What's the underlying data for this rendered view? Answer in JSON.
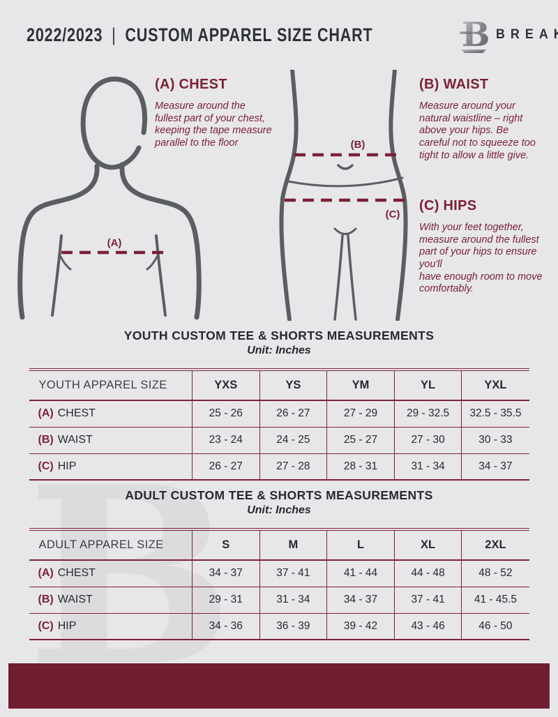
{
  "header": {
    "season": "2022/2023",
    "separator": "|",
    "title": "CUSTOM APPAREL SIZE CHART",
    "brand": "BREAKAWAY",
    "logo_icon": "breakaway-b-logo"
  },
  "colors": {
    "background": "#E7E7E9",
    "maroon_accent": "#7B2135",
    "footer_maroon": "#701D32",
    "dark_text": "#2D3136",
    "figure_gray": "#5A5E62",
    "table_rule": "#7E2137",
    "watermark_gray": "#DCDCDF"
  },
  "guide": {
    "chest": {
      "heading": "(A) CHEST",
      "marker": "(A)",
      "text": "Measure around the fullest part of your chest, keeping the tape measure parallel to the floor"
    },
    "waist": {
      "heading": "(B) WAIST",
      "marker": "(B)",
      "text": "Measure around your natural waistline – right above your hips. Be careful not to squeeze too tight to allow a little give."
    },
    "hips": {
      "heading": "(C) HIPS",
      "marker": "(C)",
      "text": "With your feet together, measure around the fullest part of your hips to ensure you'll\nhave enough room to move comfortably."
    }
  },
  "tables": {
    "youth": {
      "title": "YOUTH CUSTOM TEE & SHORTS MEASUREMENTS",
      "unit": "Unit: Inches",
      "size_header": "YOUTH APPAREL SIZE",
      "sizes": [
        "YXS",
        "YS",
        "YM",
        "YL",
        "YXL"
      ],
      "rows": [
        {
          "marker": "(A)",
          "label": "CHEST",
          "values": [
            "25 - 26",
            "26 - 27",
            "27 - 29",
            "29 - 32.5",
            "32.5 - 35.5"
          ]
        },
        {
          "marker": "(B)",
          "label": "WAIST",
          "values": [
            "23 - 24",
            "24 - 25",
            "25 - 27",
            "27 - 30",
            "30 - 33"
          ]
        },
        {
          "marker": "(C)",
          "label": "HIP",
          "values": [
            "26 - 27",
            "27 - 28",
            "28 - 31",
            "31 - 34",
            "34 - 37"
          ]
        }
      ]
    },
    "adult": {
      "title": "ADULT CUSTOM TEE & SHORTS MEASUREMENTS",
      "unit": "Unit: Inches",
      "size_header": "ADULT APPAREL SIZE",
      "sizes": [
        "S",
        "M",
        "L",
        "XL",
        "2XL"
      ],
      "rows": [
        {
          "marker": "(A)",
          "label": "CHEST",
          "values": [
            "34 - 37",
            "37 - 41",
            "41 - 44",
            "44 - 48",
            "48 - 52"
          ]
        },
        {
          "marker": "(B)",
          "label": "WAIST",
          "values": [
            "29 - 31",
            "31 - 34",
            "34 - 37",
            "37 - 41",
            "41 - 45.5"
          ]
        },
        {
          "marker": "(C)",
          "label": "HIP",
          "values": [
            "34 - 36",
            "36 - 39",
            "39 - 42",
            "43 - 46",
            "46 - 50"
          ]
        }
      ]
    }
  },
  "watermark_letter": "B"
}
